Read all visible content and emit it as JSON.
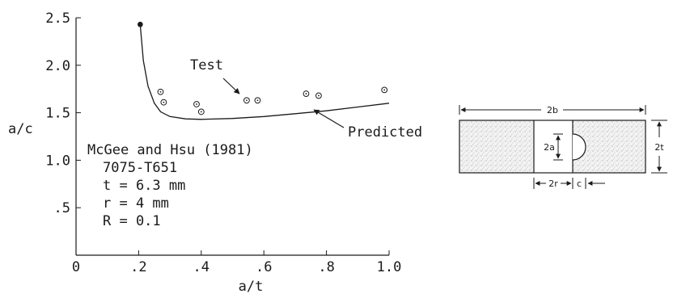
{
  "chart_data": {
    "type": "scatter",
    "xlabel": "a/t",
    "ylabel": "a/c",
    "xlim": [
      0,
      1.0
    ],
    "ylim": [
      0,
      2.5
    ],
    "x_ticks": [
      0,
      0.2,
      0.4,
      0.6,
      0.8,
      1.0
    ],
    "x_tick_labels": [
      "0",
      ".2",
      ".4",
      ".6",
      ".8",
      "1.0"
    ],
    "y_ticks": [
      0.5,
      1.0,
      1.5,
      2.0,
      2.5
    ],
    "y_tick_labels": [
      ".5",
      "1.0",
      "1.5",
      "2.0",
      "2.5"
    ],
    "grid": false,
    "series": [
      {
        "name": "Test",
        "marker": "circled-dot",
        "points": [
          [
            0.27,
            1.72
          ],
          [
            0.28,
            1.61
          ],
          [
            0.385,
            1.59
          ],
          [
            0.4,
            1.51
          ],
          [
            0.545,
            1.63
          ],
          [
            0.58,
            1.63
          ],
          [
            0.735,
            1.7
          ],
          [
            0.775,
            1.68
          ],
          [
            0.985,
            1.74
          ]
        ]
      },
      {
        "name": "Predicted",
        "style": "line",
        "points": [
          [
            0.205,
            2.43
          ],
          [
            0.215,
            2.05
          ],
          [
            0.23,
            1.78
          ],
          [
            0.25,
            1.6
          ],
          [
            0.27,
            1.51
          ],
          [
            0.3,
            1.46
          ],
          [
            0.35,
            1.435
          ],
          [
            0.4,
            1.43
          ],
          [
            0.5,
            1.44
          ],
          [
            0.6,
            1.46
          ],
          [
            0.7,
            1.49
          ],
          [
            0.8,
            1.52
          ],
          [
            0.9,
            1.56
          ],
          [
            1.0,
            1.6
          ]
        ],
        "start_marker": "filled-dot"
      }
    ],
    "annotations": {
      "test_label": "Test",
      "predicted_label": "Predicted",
      "source_lines": [
        "McGee and Hsu (1981)",
        "7075-T651",
        "t = 6.3 mm",
        "r = 4 mm",
        "R = 0.1"
      ]
    }
  },
  "specimen": {
    "width_label": "2b",
    "thickness_label": "2t",
    "crack_depth_label": "2a",
    "hole_label": "2r",
    "crack_length_label": "c"
  }
}
